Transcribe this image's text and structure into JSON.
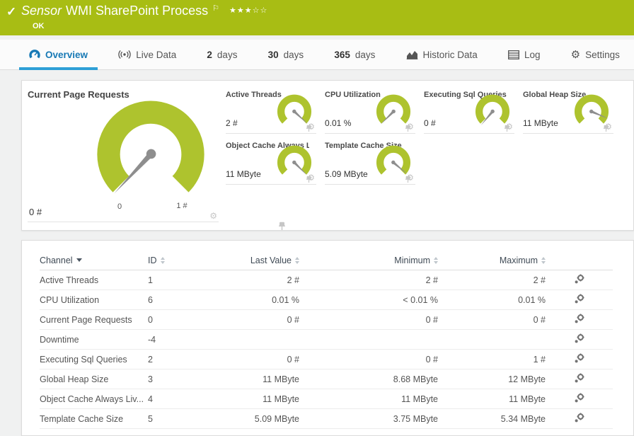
{
  "colors": {
    "status_green": "#a8bd14",
    "gauge_green": "#aec32e",
    "tab_blue": "#1779b5",
    "tab_underline": "#2e9fd6",
    "needle_gray": "#8e8e8e"
  },
  "icons": {
    "check": "✓",
    "flag": "⚐",
    "gear": "⚙"
  },
  "header": {
    "sensor_label": "Sensor",
    "title": "WMI SharePoint Process",
    "status": "OK",
    "stars": "★★★☆☆"
  },
  "tabs": {
    "overview": {
      "label": "Overview"
    },
    "livedata": {
      "label": "Live Data"
    },
    "d2": {
      "num": "2",
      "label": "days"
    },
    "d30": {
      "num": "30",
      "label": "days"
    },
    "d365": {
      "num": "365",
      "label": "days"
    },
    "historic": {
      "label": "Historic Data"
    },
    "log": {
      "label": "Log"
    },
    "settings": {
      "label": "Settings"
    }
  },
  "gauges": {
    "primary": {
      "title": "Current Page Requests",
      "value": "0 #",
      "scale_min": "0",
      "scale_max": "1 #",
      "needle_angle": -137
    },
    "small": [
      {
        "title": "Active Threads",
        "value": "2 #",
        "needle_angle": 133
      },
      {
        "title": "CPU Utilization",
        "value": "0.01 %",
        "needle_angle": -135
      },
      {
        "title": "Executing Sql Queries",
        "value": "0 #",
        "needle_angle": -140
      },
      {
        "title": "Global Heap Size",
        "value": "11 MByte",
        "needle_angle": 113
      },
      {
        "title": "Object Cache Always L...",
        "value": "11 MByte",
        "needle_angle": 135
      },
      {
        "title": "Template Cache Size",
        "value": "5.09 MByte",
        "needle_angle": 130
      }
    ]
  },
  "table": {
    "columns": {
      "channel": "Channel",
      "id": "ID",
      "last": "Last Value",
      "min": "Minimum",
      "max": "Maximum"
    },
    "rows": [
      {
        "channel": "Active Threads",
        "id": "1",
        "last": "2 #",
        "min": "2 #",
        "max": "2 #"
      },
      {
        "channel": "CPU Utilization",
        "id": "6",
        "last": "0.01 %",
        "min": "< 0.01 %",
        "max": "0.01 %"
      },
      {
        "channel": "Current Page Requests",
        "id": "0",
        "last": "0 #",
        "min": "0 #",
        "max": "0 #"
      },
      {
        "channel": "Downtime",
        "id": "-4",
        "last": "",
        "min": "",
        "max": ""
      },
      {
        "channel": "Executing Sql Queries",
        "id": "2",
        "last": "0 #",
        "min": "0 #",
        "max": "1 #"
      },
      {
        "channel": "Global Heap Size",
        "id": "3",
        "last": "11 MByte",
        "min": "8.68 MByte",
        "max": "12 MByte"
      },
      {
        "channel": "Object Cache Always Liv...",
        "id": "4",
        "last": "11 MByte",
        "min": "11 MByte",
        "max": "11 MByte"
      },
      {
        "channel": "Template Cache Size",
        "id": "5",
        "last": "5.09 MByte",
        "min": "3.75 MByte",
        "max": "5.34 MByte"
      }
    ]
  }
}
